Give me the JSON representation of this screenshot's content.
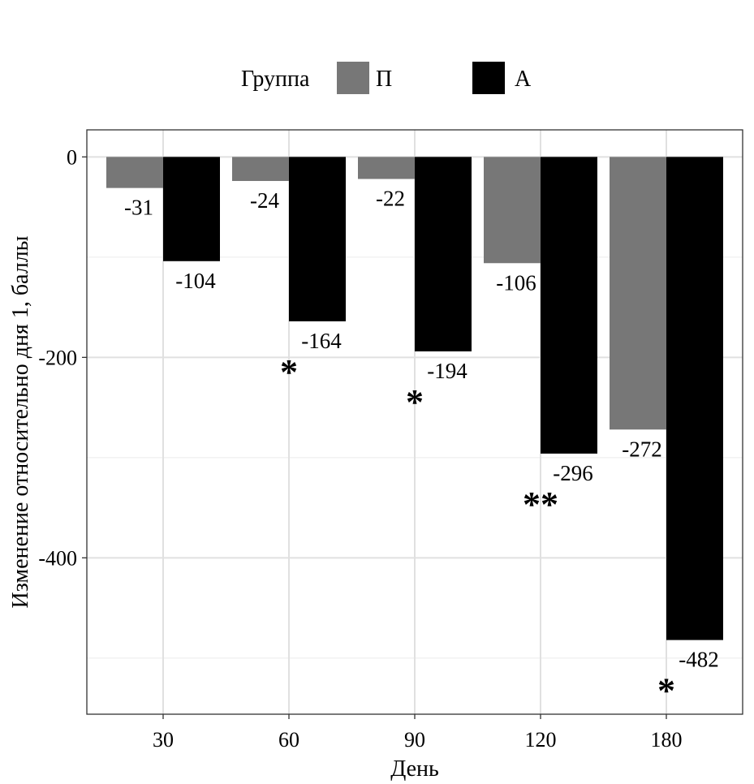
{
  "chart_data": {
    "type": "bar",
    "title": "",
    "xlabel": "День",
    "ylabel": "Изменение относительно дня 1, баллы",
    "categories": [
      "30",
      "60",
      "90",
      "120",
      "180"
    ],
    "series": [
      {
        "name": "П",
        "color": "#777777",
        "values": [
          -31,
          -24,
          -22,
          -106,
          -272
        ],
        "labels": [
          "-31",
          "-24",
          "-22",
          "-106",
          "-272"
        ]
      },
      {
        "name": "А",
        "color": "#000000",
        "values": [
          -104,
          -164,
          -194,
          -296,
          -482
        ],
        "labels": [
          "-104",
          "-164",
          "-194",
          "-296",
          "-482"
        ]
      }
    ],
    "significance": [
      "",
      "*",
      "*",
      "**",
      "*"
    ],
    "ylim": [
      -556,
      27
    ],
    "yticks": [
      0,
      -200,
      -400
    ],
    "ytick_labels": [
      "0",
      "-200",
      "-400"
    ],
    "grid": true,
    "legend": {
      "title": "Группа",
      "position": "top"
    }
  }
}
